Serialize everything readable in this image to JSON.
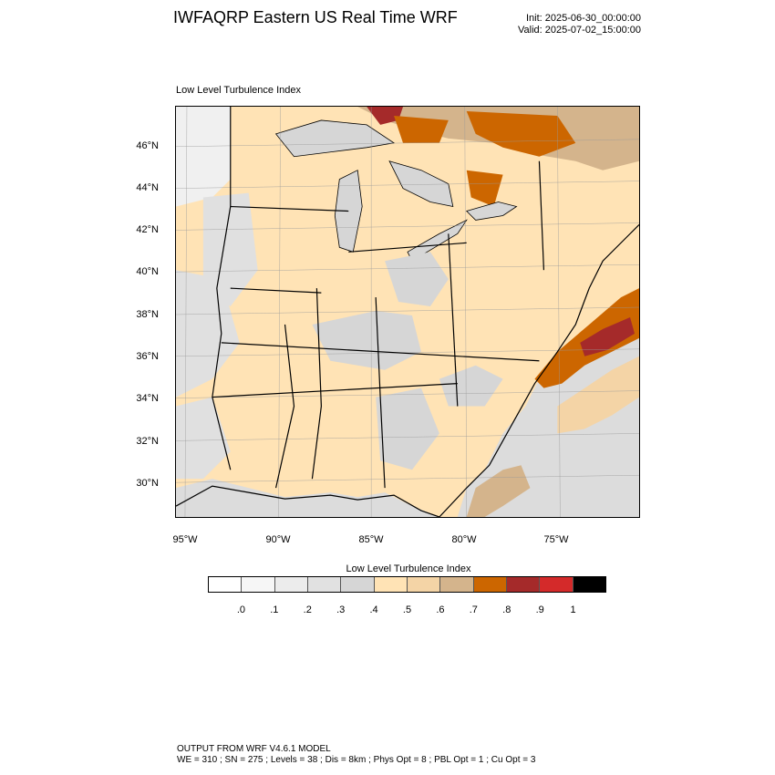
{
  "header": {
    "title": "IWFAQRP Eastern US Real Time WRF",
    "init": "Init: 2025-06-30_00:00:00",
    "valid": "Valid: 2025-07-02_15:00:00"
  },
  "plot": {
    "label": "Low Level Turbulence Index",
    "lat_labels": [
      "46°N",
      "44°N",
      "42°N",
      "40°N",
      "38°N",
      "36°N",
      "34°N",
      "32°N",
      "30°N"
    ],
    "lon_labels": [
      "95°W",
      "90°W",
      "85°W",
      "80°W",
      "75°W"
    ]
  },
  "colorbar": {
    "title": "Low Level Turbulence Index",
    "colors": [
      "#ffffff",
      "#f6f6f6",
      "#ececec",
      "#e1e1e1",
      "#d6d6d6",
      "#ffe3b5",
      "#f4d4a6",
      "#d4b48c",
      "#cc6600",
      "#a52a2a",
      "#d42a2a",
      "#000000"
    ],
    "ticks": [
      ".0",
      ".1",
      ".2",
      ".3",
      ".4",
      ".5",
      ".6",
      ".7",
      ".8",
      ".9",
      "1"
    ]
  },
  "footer": {
    "line1": "OUTPUT FROM WRF V4.6.1 MODEL",
    "line2": "WE = 310 ; SN = 275 ; Levels = 38 ; Dis = 8km ; Phys Opt = 8 ; PBL Opt = 1 ; Cu Opt = 3"
  }
}
